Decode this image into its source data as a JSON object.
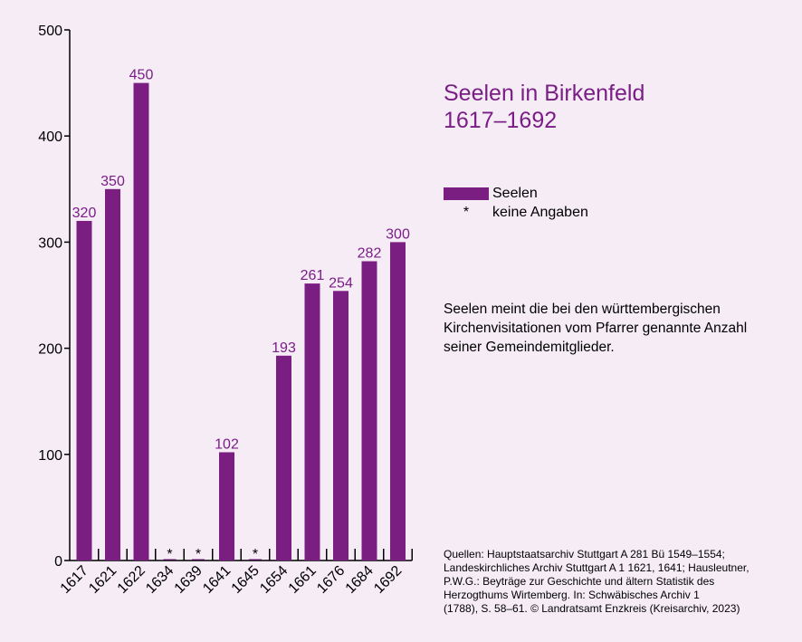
{
  "title": {
    "line1": "Seelen in Birkenfeld",
    "line2": "1617–1692"
  },
  "legend": {
    "series_label": "Seelen",
    "missing_symbol": "*",
    "missing_label": "keine Angaben"
  },
  "note": "Seelen meint die bei den württembergischen Kirchenvisitationen vom Pfarrer genannte Anzahl seiner Gemeindemitglieder.",
  "sources": [
    "Quellen: Hauptstaatsarchiv Stuttgart A 281 Bü 1549–1554;",
    "Landeskirchliches Archiv Stuttgart A 1 1621, 1641; Hausleutner,",
    "P.W.G.: Beyträge zur Geschichte und ältern Statistik des",
    "Herzogthums Wirtemberg. In: Schwäbisches Archiv 1",
    "(1788), S. 58–61. © Landratsamt Enzkreis (Kreisarchiv, 2023)"
  ],
  "colors": {
    "bar": "#7b1e82",
    "label": "#7a1e86",
    "background": "#f5ecf6"
  },
  "chart_data": {
    "type": "bar",
    "categories": [
      "1617",
      "1621",
      "1622",
      "1634",
      "1639",
      "1641",
      "1645",
      "1654",
      "1661",
      "1676",
      "1684",
      "1692"
    ],
    "series": [
      {
        "name": "Seelen",
        "values": [
          320,
          350,
          450,
          null,
          null,
          102,
          null,
          193,
          261,
          254,
          282,
          300
        ]
      }
    ],
    "data_labels": [
      "320",
      "350",
      "450",
      "*",
      "*",
      "102",
      "*",
      "193",
      "261",
      "254",
      "282",
      "300"
    ],
    "yticks": [
      0,
      100,
      200,
      300,
      400,
      500
    ],
    "ylim": [
      0,
      500
    ],
    "grid": false,
    "legend_position": "right"
  }
}
